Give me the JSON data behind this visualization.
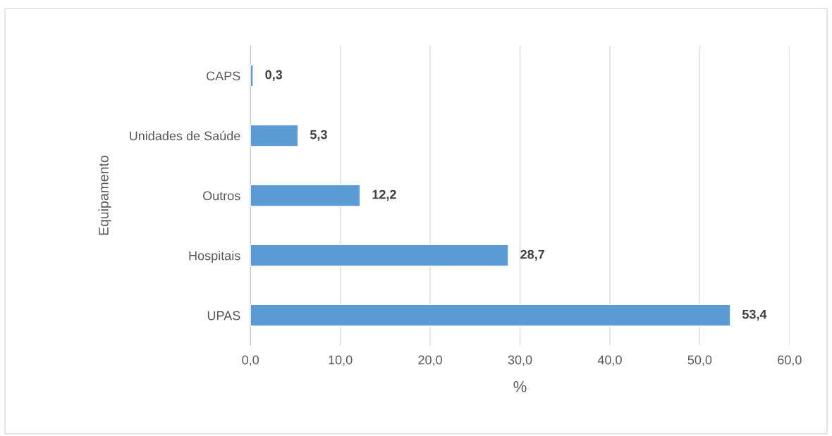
{
  "chart_data": {
    "type": "bar",
    "orientation": "horizontal",
    "categories": [
      "CAPS",
      "Unidades de Saúde",
      "Outros",
      "Hospitais",
      "UPAS"
    ],
    "values": [
      0.3,
      5.3,
      12.2,
      28.7,
      53.4
    ],
    "value_labels": [
      "0,3",
      "5,3",
      "12,2",
      "28,7",
      "53,4"
    ],
    "color": "#5b9bd5",
    "xlim": [
      0,
      60
    ],
    "xticks": [
      {
        "value": 0,
        "label": "0,0"
      },
      {
        "value": 10,
        "label": "10,0"
      },
      {
        "value": 20,
        "label": "20,0"
      },
      {
        "value": 30,
        "label": "30,0"
      },
      {
        "value": 40,
        "label": "40,0"
      },
      {
        "value": 50,
        "label": "50,0"
      },
      {
        "value": 60,
        "label": "60,0"
      }
    ],
    "xlabel": "%",
    "ylabel": "Equipamento",
    "grid": "x",
    "legend": false
  }
}
